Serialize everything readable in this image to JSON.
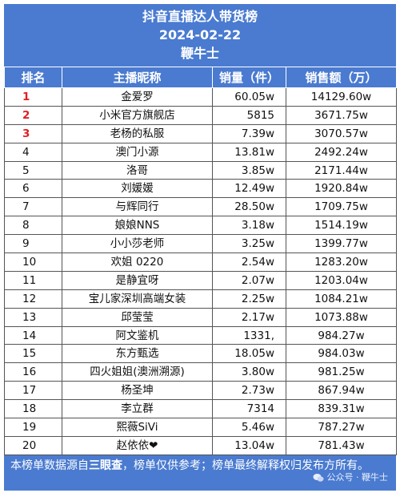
{
  "header": {
    "title": "抖音直播达人带货榜",
    "date": "2024-02-22",
    "brand": "鞭牛士"
  },
  "columns": [
    "排名",
    "主播昵称",
    "销量（件）",
    "销售额（万）"
  ],
  "rows": [
    {
      "rank": "1",
      "name": "金爱罗",
      "volume": "60.05w",
      "sales": "14129.60w"
    },
    {
      "rank": "2",
      "name": "小米官方旗舰店",
      "volume": "5815",
      "sales": "3671.75w"
    },
    {
      "rank": "3",
      "name": "老杨的私服",
      "volume": "7.39w",
      "sales": "3070.57w"
    },
    {
      "rank": "4",
      "name": "澳门小源",
      "volume": "13.81w",
      "sales": "2492.24w"
    },
    {
      "rank": "5",
      "name": "洛哥",
      "volume": "3.85w",
      "sales": "2171.44w"
    },
    {
      "rank": "6",
      "name": "刘媛媛",
      "volume": "12.49w",
      "sales": "1920.84w"
    },
    {
      "rank": "7",
      "name": "与辉同行",
      "volume": "28.50w",
      "sales": "1709.75w"
    },
    {
      "rank": "8",
      "name": "娘娘NNS",
      "volume": "3.18w",
      "sales": "1514.19w"
    },
    {
      "rank": "9",
      "name": "小小莎老师",
      "volume": "3.25w",
      "sales": "1399.77w"
    },
    {
      "rank": "10",
      "name": "欢姐 0220",
      "volume": "2.54w",
      "sales": "1283.20w"
    },
    {
      "rank": "11",
      "name": "是静宜呀",
      "volume": "2.07w",
      "sales": "1203.04w"
    },
    {
      "rank": "12",
      "name": "宝儿家深圳高端女装",
      "volume": "2.25w",
      "sales": "1084.21w"
    },
    {
      "rank": "13",
      "name": "邱莹莹",
      "volume": "2.17w",
      "sales": "1073.88w"
    },
    {
      "rank": "14",
      "name": "阿文鉴机",
      "volume": "1331,",
      "sales": "984.27w"
    },
    {
      "rank": "15",
      "name": "东方甄选",
      "volume": "18.05w",
      "sales": "984.03w"
    },
    {
      "rank": "16",
      "name": "四火姐姐(澳洲溯源)",
      "volume": "3.80w",
      "sales": "981.25w"
    },
    {
      "rank": "17",
      "name": "杨圣坤",
      "volume": "2.73w",
      "sales": "867.94w"
    },
    {
      "rank": "18",
      "name": "李立群",
      "volume": "7314",
      "sales": "839.31w"
    },
    {
      "rank": "19",
      "name": "熙薇SiVi",
      "volume": "5.46w",
      "sales": "787.27w"
    },
    {
      "rank": "20",
      "name": "赵依依❤",
      "volume": "13.04w",
      "sales": "781.43w"
    }
  ],
  "footer": {
    "note_prefix": "本榜单数据源自",
    "source": "三眼查",
    "note_suffix": "，榜单仅供参考；榜单最终解释权归发布方所有。",
    "watermark": "公众号 · 鞭牛士",
    "watermark_icon": "wechat-icon"
  },
  "colors": {
    "header_bg": "#4a7bd0",
    "top3_rank": "#e02020"
  }
}
